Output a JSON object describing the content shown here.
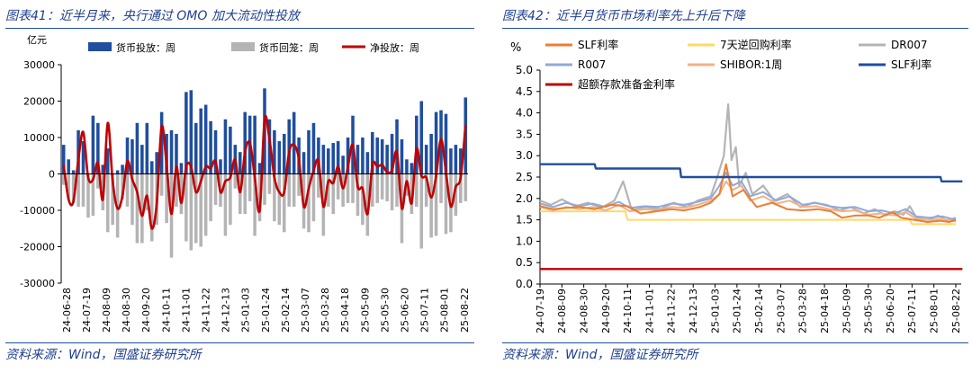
{
  "left_title": "图表41：近半月来，央行通过 OMO 加大流动性投放",
  "right_title": "图表42：近半月货币市场利率先上升后下降",
  "left_source": "资料来源：Wind，国盛证券研究所",
  "right_source": "资料来源：Wind，国盛证券研究所",
  "colors": {
    "title": "#1f3f8f",
    "rule": "#1f4fa0",
    "injection": "#1f4e9f",
    "withdrawal": "#b4b4b4",
    "net": "#c00000"
  },
  "chart_data": [
    {
      "type": "bar",
      "ylabel": "亿元",
      "ylim": [
        -30000,
        30000
      ],
      "yticks": [
        -30000,
        -20000,
        -10000,
        0,
        10000,
        20000,
        30000
      ],
      "xticks": [
        "24-06-28",
        "24-07-19",
        "24-08-09",
        "24-08-30",
        "24-09-20",
        "24-10-11",
        "24-11-01",
        "24-11-22",
        "24-12-13",
        "25-01-03",
        "25-01-24",
        "25-02-14",
        "25-03-07",
        "25-03-28",
        "25-04-18",
        "25-05-09",
        "25-05-30",
        "25-06-20",
        "25-07-11",
        "25-08-01",
        "25-08-22"
      ],
      "legend": [
        "货币投放：周",
        "货币回笼：周",
        "净投放：周"
      ],
      "series": [
        {
          "name": "货币投放：周",
          "type": "bar",
          "values": [
            8000,
            4000,
            1000,
            12000,
            9000,
            0,
            16000,
            14000,
            2500,
            7000,
            0,
            1000,
            2500,
            10000,
            9500,
            14000,
            8000,
            14000,
            3500,
            6000,
            17000,
            11000,
            12000,
            11000,
            3000,
            22500,
            23000,
            14000,
            18000,
            19000,
            14500,
            12000,
            4000,
            15000,
            13000,
            8000,
            6000,
            17000,
            16000,
            16000,
            3000,
            23500,
            15000,
            12000,
            9000,
            11000,
            15000,
            17000,
            10000,
            6000,
            12000,
            14000,
            10000,
            8000,
            7000,
            8500,
            9000,
            5000,
            10000,
            16000,
            8000,
            10000,
            6000,
            11500,
            10000,
            9500,
            8000,
            11000,
            15000,
            9500,
            4000,
            3000,
            16000,
            20000,
            8000,
            11000,
            17000,
            17500,
            16500,
            7000,
            8000,
            7000,
            21000
          ]
        },
        {
          "name": "货币回笼：周",
          "type": "bar",
          "values": [
            -3000,
            -7000,
            -8000,
            -9000,
            -9000,
            -12000,
            -11500,
            -4000,
            -10000,
            -16000,
            -14000,
            -17500,
            -7000,
            -9000,
            -14000,
            -19000,
            -19000,
            -10000,
            -18500,
            -14000,
            -6000,
            -13500,
            -23000,
            -9000,
            -11000,
            -18500,
            -21000,
            -19000,
            -20000,
            -17000,
            -13000,
            -8500,
            -9000,
            -17000,
            -14000,
            -4000,
            -11000,
            -11000,
            -7500,
            -17000,
            -13000,
            -8500,
            -5500,
            -13000,
            -14000,
            -16000,
            -9000,
            -9000,
            -6000,
            -15000,
            -16000,
            -13000,
            -6500,
            -17000,
            -9000,
            -11000,
            -7000,
            -9000,
            -8000,
            -8000,
            -11500,
            -14000,
            -17000,
            -9000,
            -8000,
            -7000,
            -7500,
            -10000,
            -9000,
            -19000,
            -6000,
            -11000,
            -9000,
            -20500,
            -9000,
            -17500,
            -17000,
            -8000,
            -16500,
            -16000,
            -11500,
            -8000,
            -7500
          ]
        },
        {
          "name": "净投放：周",
          "type": "line",
          "values": [
            2500,
            -7000,
            -7500,
            4000,
            11500,
            -1000,
            -1500,
            3000,
            -7000,
            14000,
            -2000,
            -9500,
            -6000,
            3500,
            -1500,
            -5000,
            -11500,
            -6000,
            -15000,
            -8000,
            13000,
            2500,
            -11000,
            2000,
            -8000,
            2000,
            2000,
            -5000,
            -2000,
            2000,
            1500,
            3500,
            -5000,
            -2000,
            -1000,
            4000,
            -5000,
            6000,
            8500,
            -1000,
            -10000,
            15000,
            9500,
            -1000,
            -5000,
            -5000,
            6000,
            8000,
            4000,
            -9000,
            -4000,
            1000,
            3500,
            -9000,
            -2000,
            -2500,
            2000,
            -4000,
            2000,
            8000,
            -3500,
            -4000,
            -11000,
            2500,
            2000,
            2500,
            500,
            1000,
            6000,
            -9500,
            -2000,
            -8000,
            7000,
            -500,
            -1000,
            -6500,
            -500,
            9500,
            500,
            -9000,
            -3500,
            -1000,
            13500
          ]
        }
      ]
    },
    {
      "type": "line",
      "ylabel": "%",
      "ylim": [
        0,
        5
      ],
      "yticks": [
        0.0,
        0.5,
        1.0,
        1.5,
        2.0,
        2.5,
        3.0,
        3.5,
        4.0,
        4.5,
        5.0
      ],
      "xticks": [
        "24-07-19",
        "24-08-09",
        "24-08-30",
        "24-09-20",
        "24-10-11",
        "24-11-01",
        "24-11-22",
        "24-12-13",
        "25-01-03",
        "25-01-24",
        "25-02-14",
        "25-03-07",
        "25-03-28",
        "25-04-18",
        "25-05-09",
        "25-05-30",
        "25-06-20",
        "25-07-11",
        "25-08-01",
        "25-08-22"
      ],
      "legend": [
        "SLF利率",
        "7天逆回购利率",
        "DR007",
        "R007",
        "SHIBOR:1周",
        "SLF利率",
        "超额存款准备金利率"
      ],
      "series": [
        {
          "name": "SLF利率",
          "color": "#ed7d31",
          "points": [
            [
              0,
              1.82
            ],
            [
              0.6,
              1.75
            ],
            [
              1.2,
              1.78
            ],
            [
              1.8,
              1.8
            ],
            [
              2.5,
              1.75
            ],
            [
              3.2,
              1.85
            ],
            [
              4,
              1.82
            ],
            [
              4.6,
              1.65
            ],
            [
              5.3,
              1.7
            ],
            [
              6,
              1.75
            ],
            [
              6.6,
              1.72
            ],
            [
              7.3,
              1.8
            ],
            [
              7.8,
              1.9
            ],
            [
              8.2,
              2.1
            ],
            [
              8.5,
              2.8
            ],
            [
              8.8,
              2.05
            ],
            [
              9.3,
              2.2
            ],
            [
              9.9,
              1.8
            ],
            [
              10.6,
              1.9
            ],
            [
              11.3,
              1.75
            ],
            [
              12,
              1.72
            ],
            [
              12.7,
              1.75
            ],
            [
              13.3,
              1.7
            ],
            [
              13.8,
              1.55
            ],
            [
              14.4,
              1.6
            ],
            [
              15,
              1.6
            ],
            [
              15.5,
              1.55
            ],
            [
              16.1,
              1.68
            ],
            [
              16.5,
              1.55
            ],
            [
              17.1,
              1.5
            ],
            [
              17.7,
              1.45
            ],
            [
              18.3,
              1.48
            ],
            [
              18.7,
              1.45
            ],
            [
              19,
              1.5
            ]
          ]
        },
        {
          "name": "7天逆回购利率",
          "color": "#ffd966",
          "points": [
            [
              0,
              1.7
            ],
            [
              3.9,
              1.7
            ],
            [
              4,
              1.5
            ],
            [
              16.9,
              1.5
            ],
            [
              17,
              1.4
            ],
            [
              19,
              1.4
            ]
          ]
        },
        {
          "name": "DR007",
          "color": "#b4b4b4",
          "points": [
            [
              0,
              1.95
            ],
            [
              0.5,
              1.85
            ],
            [
              1,
              1.98
            ],
            [
              1.6,
              1.82
            ],
            [
              2.2,
              1.9
            ],
            [
              2.8,
              1.78
            ],
            [
              3.4,
              1.95
            ],
            [
              3.8,
              2.4
            ],
            [
              4.2,
              1.72
            ],
            [
              4.8,
              1.8
            ],
            [
              5.5,
              1.75
            ],
            [
              6.1,
              1.9
            ],
            [
              6.7,
              1.8
            ],
            [
              7.2,
              1.95
            ],
            [
              7.8,
              2.05
            ],
            [
              8.1,
              2.5
            ],
            [
              8.4,
              3.0
            ],
            [
              8.6,
              4.2
            ],
            [
              8.75,
              2.9
            ],
            [
              8.95,
              3.2
            ],
            [
              9.1,
              2.3
            ],
            [
              9.4,
              2.6
            ],
            [
              9.7,
              2.1
            ],
            [
              10.2,
              2.3
            ],
            [
              10.7,
              1.95
            ],
            [
              11.3,
              2.1
            ],
            [
              11.9,
              1.8
            ],
            [
              12.5,
              1.9
            ],
            [
              13.1,
              1.85
            ],
            [
              13.7,
              1.72
            ],
            [
              14.2,
              1.8
            ],
            [
              14.8,
              1.65
            ],
            [
              15.3,
              1.75
            ],
            [
              15.8,
              1.6
            ],
            [
              16.2,
              1.7
            ],
            [
              16.6,
              1.62
            ],
            [
              16.9,
              1.82
            ],
            [
              17.2,
              1.55
            ],
            [
              17.7,
              1.5
            ],
            [
              18.2,
              1.6
            ],
            [
              18.6,
              1.48
            ],
            [
              19,
              1.55
            ]
          ]
        },
        {
          "name": "R007",
          "color": "#8eaadb",
          "points": [
            [
              0,
              1.88
            ],
            [
              0.6,
              1.8
            ],
            [
              1.2,
              1.9
            ],
            [
              1.8,
              1.82
            ],
            [
              2.4,
              1.88
            ],
            [
              3,
              1.8
            ],
            [
              3.6,
              1.92
            ],
            [
              4.1,
              1.78
            ],
            [
              4.8,
              1.82
            ],
            [
              5.4,
              1.8
            ],
            [
              6,
              1.88
            ],
            [
              6.6,
              1.85
            ],
            [
              7.2,
              1.92
            ],
            [
              7.8,
              2.0
            ],
            [
              8.2,
              2.3
            ],
            [
              8.5,
              2.6
            ],
            [
              8.8,
              2.3
            ],
            [
              9.2,
              2.4
            ],
            [
              9.6,
              2.05
            ],
            [
              10.2,
              2.15
            ],
            [
              10.8,
              1.95
            ],
            [
              11.4,
              2.05
            ],
            [
              12,
              1.85
            ],
            [
              12.6,
              1.9
            ],
            [
              13.2,
              1.82
            ],
            [
              13.8,
              1.78
            ],
            [
              14.4,
              1.8
            ],
            [
              15,
              1.7
            ],
            [
              15.6,
              1.72
            ],
            [
              16.2,
              1.65
            ],
            [
              16.7,
              1.75
            ],
            [
              17.2,
              1.58
            ],
            [
              17.8,
              1.55
            ],
            [
              18.4,
              1.58
            ],
            [
              19,
              1.5
            ]
          ]
        },
        {
          "name": "SHIBOR:1周",
          "color": "#f4b183",
          "points": [
            [
              0,
              1.8
            ],
            [
              0.6,
              1.72
            ],
            [
              1.2,
              1.8
            ],
            [
              1.8,
              1.75
            ],
            [
              2.4,
              1.8
            ],
            [
              3,
              1.72
            ],
            [
              3.6,
              1.85
            ],
            [
              4.1,
              1.7
            ],
            [
              4.8,
              1.75
            ],
            [
              5.4,
              1.72
            ],
            [
              6,
              1.8
            ],
            [
              6.6,
              1.78
            ],
            [
              7.2,
              1.85
            ],
            [
              7.8,
              1.95
            ],
            [
              8.2,
              2.1
            ],
            [
              8.5,
              2.4
            ],
            [
              8.8,
              2.2
            ],
            [
              9.2,
              2.3
            ],
            [
              9.6,
              1.95
            ],
            [
              10.2,
              2.05
            ],
            [
              10.8,
              1.88
            ],
            [
              11.4,
              1.95
            ],
            [
              12,
              1.8
            ],
            [
              12.6,
              1.82
            ],
            [
              13.2,
              1.75
            ],
            [
              13.8,
              1.7
            ],
            [
              14.4,
              1.72
            ],
            [
              15,
              1.62
            ],
            [
              15.6,
              1.65
            ],
            [
              16.2,
              1.6
            ],
            [
              16.7,
              1.68
            ],
            [
              17.2,
              1.52
            ],
            [
              17.8,
              1.5
            ],
            [
              18.4,
              1.52
            ],
            [
              19,
              1.46
            ]
          ]
        },
        {
          "name": "SLF利率",
          "color": "#1f4e9f",
          "points": [
            [
              0,
              2.8
            ],
            [
              2.5,
              2.8
            ],
            [
              2.55,
              2.7
            ],
            [
              6.4,
              2.7
            ],
            [
              6.45,
              2.5
            ],
            [
              18.3,
              2.5
            ],
            [
              18.35,
              2.4
            ],
            [
              19.3,
              2.4
            ]
          ]
        },
        {
          "name": "超额存款准备金利率",
          "color": "#c00000",
          "points": [
            [
              0,
              0.35
            ],
            [
              19.3,
              0.35
            ]
          ]
        }
      ]
    }
  ]
}
